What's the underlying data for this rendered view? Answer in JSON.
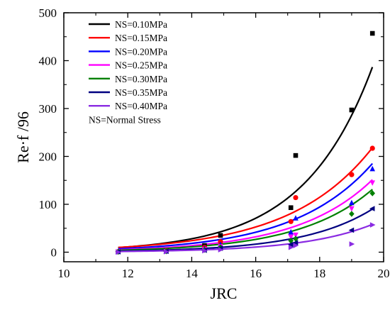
{
  "chart_data": {
    "type": "scatter",
    "xlabel": "JRC",
    "ylabel": "Re·f /96",
    "xlim": [
      10,
      20
    ],
    "ylim": [
      -20,
      500
    ],
    "x_ticks": [
      "10",
      "12",
      "14",
      "16",
      "18",
      "20"
    ],
    "y_ticks": [
      "0",
      "100",
      "200",
      "300",
      "400",
      "500"
    ],
    "legend_position": "top-left",
    "legend_note": "NS=Normal Stress",
    "grid": false,
    "series": [
      {
        "name": "NS=0.10MPa",
        "color": "#000000",
        "marker": "square",
        "points": [
          [
            11.7,
            1
          ],
          [
            13.2,
            3
          ],
          [
            14.4,
            14
          ],
          [
            14.9,
            35
          ],
          [
            17.1,
            93
          ],
          [
            17.25,
            202
          ],
          [
            19.0,
            297
          ],
          [
            19.65,
            457
          ]
        ],
        "fit": {
          "a": 0.042,
          "b": 0.4645
        }
      },
      {
        "name": "NS=0.15MPa",
        "color": "#ff0000",
        "marker": "circle",
        "points": [
          [
            11.7,
            1
          ],
          [
            13.2,
            3
          ],
          [
            14.4,
            10
          ],
          [
            14.9,
            22
          ],
          [
            17.1,
            64
          ],
          [
            17.25,
            114
          ],
          [
            19.0,
            162
          ],
          [
            19.65,
            217
          ]
        ],
        "fit": {
          "a": 0.1029,
          "b": 0.3898
        }
      },
      {
        "name": "NS=0.20MPa",
        "color": "#0000ff",
        "marker": "triangle-up",
        "points": [
          [
            11.7,
            1
          ],
          [
            13.2,
            2
          ],
          [
            14.4,
            8
          ],
          [
            14.9,
            16
          ],
          [
            17.1,
            42
          ],
          [
            17.25,
            71
          ],
          [
            19.0,
            103
          ],
          [
            19.65,
            174
          ]
        ],
        "fit": {
          "a": 0.0602,
          "b": 0.4087
        }
      },
      {
        "name": "NS=0.25MPa",
        "color": "#ff00ff",
        "marker": "triangle-down",
        "points": [
          [
            11.7,
            1
          ],
          [
            13.2,
            2
          ],
          [
            14.4,
            6
          ],
          [
            14.9,
            12
          ],
          [
            17.1,
            32
          ],
          [
            17.25,
            36
          ],
          [
            19.0,
            91
          ],
          [
            19.65,
            145
          ]
        ],
        "fit": {
          "a": 0.0358,
          "b": 0.4249
        }
      },
      {
        "name": "NS=0.30MPa",
        "color": "#008000",
        "marker": "diamond",
        "points": [
          [
            11.7,
            1
          ],
          [
            13.2,
            2
          ],
          [
            14.4,
            5
          ],
          [
            14.9,
            10
          ],
          [
            17.1,
            24
          ],
          [
            17.25,
            28
          ],
          [
            19.0,
            80
          ],
          [
            19.65,
            123
          ]
        ],
        "fit": {
          "a": 0.0251,
          "b": 0.4357
        }
      },
      {
        "name": "NS=0.35MPa",
        "color": "#000080",
        "marker": "triangle-left",
        "points": [
          [
            11.7,
            1
          ],
          [
            13.2,
            2
          ],
          [
            14.4,
            4
          ],
          [
            14.9,
            8
          ],
          [
            17.1,
            16
          ],
          [
            17.25,
            20
          ],
          [
            19.0,
            46
          ],
          [
            19.65,
            91
          ]
        ],
        "fit": {
          "a": 0.0105,
          "b": 0.4609
        }
      },
      {
        "name": "NS=0.40MPa",
        "color": "#8a2be2",
        "marker": "triangle-right",
        "points": [
          [
            11.7,
            0
          ],
          [
            13.2,
            1
          ],
          [
            14.4,
            3
          ],
          [
            14.9,
            5
          ],
          [
            17.1,
            10
          ],
          [
            17.25,
            14
          ],
          [
            19.0,
            17
          ],
          [
            19.65,
            57
          ]
        ],
        "fit": {
          "a": 0.0064,
          "b": 0.4638
        }
      }
    ]
  }
}
